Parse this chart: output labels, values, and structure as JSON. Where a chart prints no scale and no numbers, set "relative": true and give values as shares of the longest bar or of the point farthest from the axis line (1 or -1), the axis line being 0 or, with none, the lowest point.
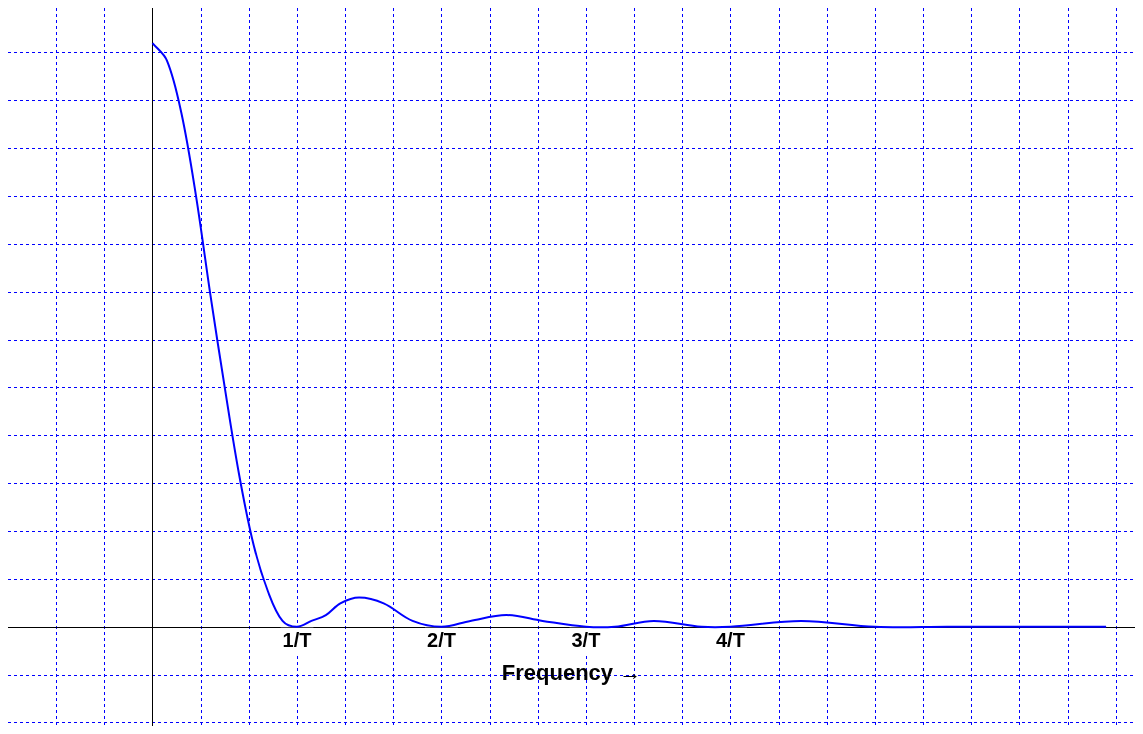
{
  "chart_data": {
    "type": "line",
    "relative": true,
    "xlabel": "Frequency →",
    "xlim": [
      -1,
      6.8
    ],
    "xticks": [
      {
        "value": -0.6667,
        "label": null
      },
      {
        "value": -0.3333,
        "label": null
      },
      {
        "value": 0,
        "label": null
      },
      {
        "value": 0.3333,
        "label": null
      },
      {
        "value": 0.6667,
        "label": null
      },
      {
        "value": 1,
        "label": "1/T"
      },
      {
        "value": 1.3333,
        "label": null
      },
      {
        "value": 1.6667,
        "label": null
      },
      {
        "value": 2,
        "label": "2/T"
      },
      {
        "value": 2.3333,
        "label": null
      },
      {
        "value": 2.6667,
        "label": null
      },
      {
        "value": 3,
        "label": "3/T"
      },
      {
        "value": 3.3333,
        "label": null
      },
      {
        "value": 3.6667,
        "label": null
      },
      {
        "value": 4,
        "label": "4/T"
      },
      {
        "value": 4.3333,
        "label": null
      },
      {
        "value": 4.6667,
        "label": null
      },
      {
        "value": 5,
        "label": null
      },
      {
        "value": 5.3333,
        "label": null
      },
      {
        "value": 5.6667,
        "label": null
      },
      {
        "value": 6,
        "label": null
      },
      {
        "value": 6.3333,
        "label": null
      },
      {
        "value": 6.6667,
        "label": null
      }
    ],
    "x": [
      0,
      0.1,
      0.2,
      0.3,
      0.4,
      0.5,
      0.6,
      0.7,
      0.8,
      0.9,
      1,
      1.1,
      1.2,
      1.3,
      1.43,
      1.6,
      1.8,
      2,
      2.2,
      2.45,
      2.7,
      3,
      3.2,
      3.47,
      3.8,
      4,
      4.49,
      5,
      5.5,
      6,
      6.6
    ],
    "series": [
      {
        "color": "#0000ff",
        "values": [
          1,
          0.97,
          0.88,
          0.74,
          0.57,
          0.41,
          0.26,
          0.14,
          0.06,
          0.01,
          0,
          0.01,
          0.02,
          0.04,
          0.05,
          0.04,
          0.01,
          0,
          0.01,
          0.02,
          0.01,
          0,
          0,
          0.01,
          0,
          0,
          0.01,
          0,
          0,
          0,
          0
        ]
      }
    ],
    "grid": true,
    "marker": "none",
    "line_style": "solid",
    "legend": false
  }
}
